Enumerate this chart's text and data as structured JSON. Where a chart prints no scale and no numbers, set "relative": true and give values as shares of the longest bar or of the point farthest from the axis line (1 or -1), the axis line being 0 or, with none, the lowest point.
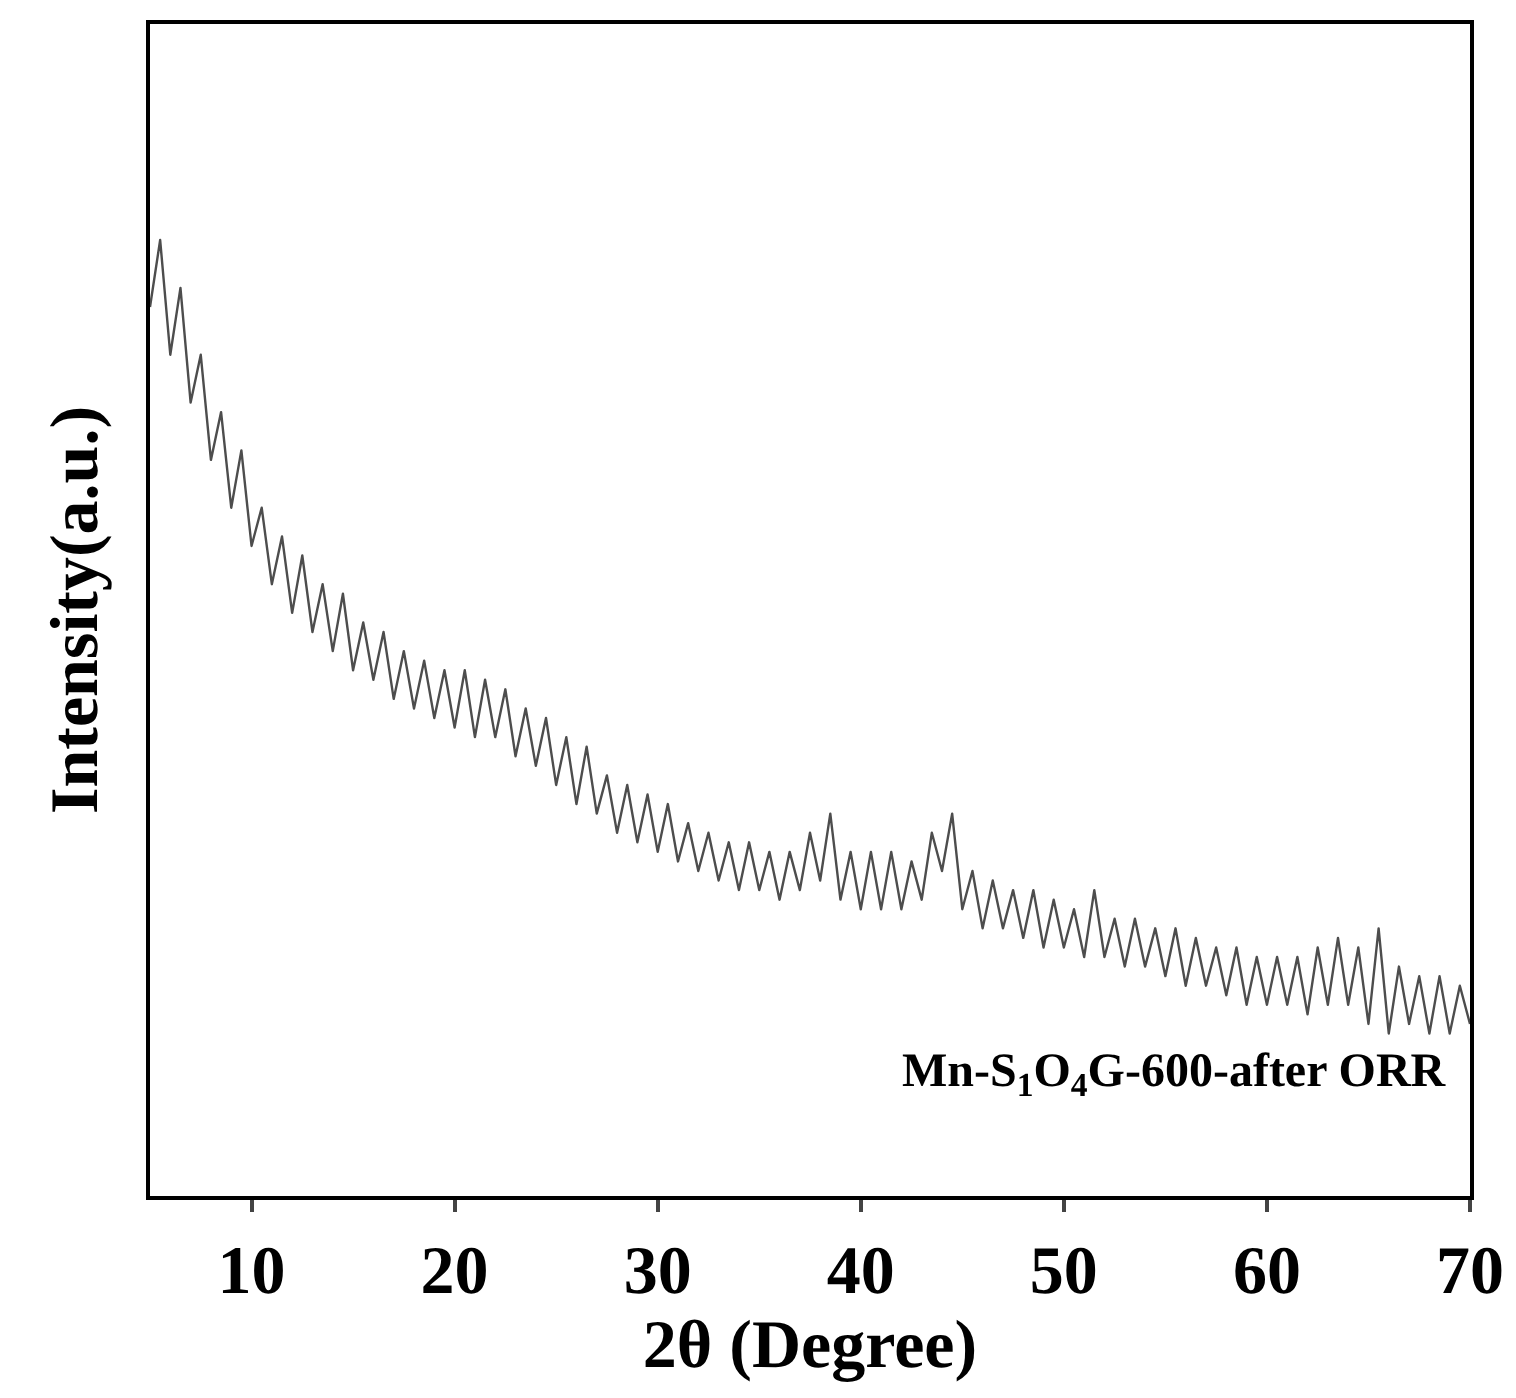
{
  "chart_data": {
    "type": "line",
    "xlabel": "2θ (Degree)",
    "ylabel": "Intensity(a.u.)",
    "relative": true,
    "xlim": [
      5,
      70
    ],
    "xticks": [
      10,
      20,
      30,
      40,
      50,
      60,
      70
    ],
    "grid": false,
    "annotations": [
      "Mn-S$_{1}$O$_{4}$G-600-after ORR"
    ],
    "x": [
      5,
      5.5,
      6,
      6.5,
      7,
      7.5,
      8,
      8.5,
      9,
      9.5,
      10,
      10.5,
      11,
      11.5,
      12,
      12.5,
      13,
      13.5,
      14,
      14.5,
      15,
      15.5,
      16,
      16.5,
      17,
      17.5,
      18,
      18.5,
      19,
      19.5,
      20,
      20.5,
      21,
      21.5,
      22,
      22.5,
      23,
      23.5,
      24,
      24.5,
      25,
      25.5,
      26,
      26.5,
      27,
      27.5,
      28,
      28.5,
      29,
      29.5,
      30,
      30.5,
      31,
      31.5,
      32,
      32.5,
      33,
      33.5,
      34,
      34.5,
      35,
      35.5,
      36,
      36.5,
      37,
      37.5,
      38,
      38.5,
      39,
      39.5,
      40,
      40.5,
      41,
      41.5,
      42,
      42.5,
      43,
      43.5,
      44,
      44.5,
      45,
      45.5,
      46,
      46.5,
      47,
      47.5,
      48,
      48.5,
      49,
      49.5,
      50,
      50.5,
      51,
      51.5,
      52,
      52.5,
      53,
      53.5,
      54,
      54.5,
      55,
      55.5,
      56,
      56.5,
      57,
      57.5,
      58,
      58.5,
      59,
      59.5,
      60,
      60.5,
      61,
      61.5,
      62,
      62.5,
      63,
      63.5,
      64,
      64.5,
      65,
      65.5,
      66,
      66.5,
      67,
      67.5,
      68,
      68.5,
      69,
      69.5,
      70
    ],
    "series": [
      {
        "color": "#4d4d4d",
        "values": [
          0.93,
          1.0,
          0.88,
          0.95,
          0.83,
          0.88,
          0.77,
          0.82,
          0.72,
          0.78,
          0.68,
          0.72,
          0.64,
          0.69,
          0.61,
          0.67,
          0.59,
          0.64,
          0.57,
          0.63,
          0.55,
          0.6,
          0.54,
          0.59,
          0.52,
          0.57,
          0.51,
          0.56,
          0.5,
          0.55,
          0.49,
          0.55,
          0.48,
          0.54,
          0.48,
          0.53,
          0.46,
          0.51,
          0.45,
          0.5,
          0.43,
          0.48,
          0.41,
          0.47,
          0.4,
          0.44,
          0.38,
          0.43,
          0.37,
          0.42,
          0.36,
          0.41,
          0.35,
          0.39,
          0.34,
          0.38,
          0.33,
          0.37,
          0.32,
          0.37,
          0.32,
          0.36,
          0.31,
          0.36,
          0.32,
          0.38,
          0.33,
          0.4,
          0.31,
          0.36,
          0.3,
          0.36,
          0.3,
          0.36,
          0.3,
          0.35,
          0.31,
          0.38,
          0.34,
          0.4,
          0.3,
          0.34,
          0.28,
          0.33,
          0.28,
          0.32,
          0.27,
          0.32,
          0.26,
          0.31,
          0.26,
          0.3,
          0.25,
          0.32,
          0.25,
          0.29,
          0.24,
          0.29,
          0.24,
          0.28,
          0.23,
          0.28,
          0.22,
          0.27,
          0.22,
          0.26,
          0.21,
          0.26,
          0.2,
          0.25,
          0.2,
          0.25,
          0.2,
          0.25,
          0.19,
          0.26,
          0.2,
          0.27,
          0.2,
          0.26,
          0.18,
          0.28,
          0.17,
          0.24,
          0.18,
          0.23,
          0.17,
          0.23,
          0.17,
          0.22,
          0.18
        ]
      }
    ]
  }
}
